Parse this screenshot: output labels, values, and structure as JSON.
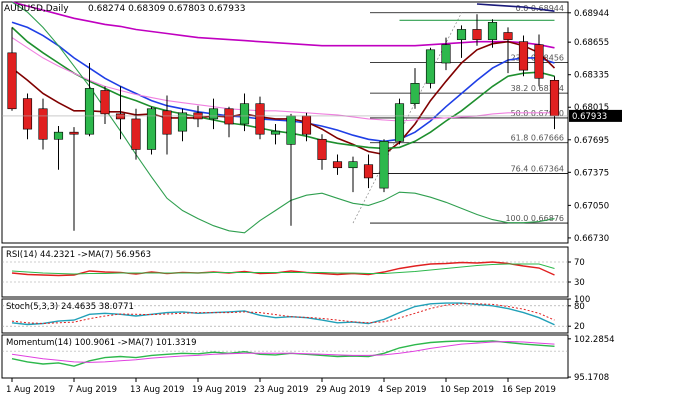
{
  "header": {
    "symbol": "AUDUSD,Daily",
    "ohlc": "0.68274 0.68309 0.67803 0.67933"
  },
  "colors": {
    "bull": "#2db84c",
    "bear": "#e02020",
    "wick": "#000000",
    "ema_magenta": "#c000c0",
    "ema_navy": "#1a1a7a",
    "ema_blue": "#1f3fe6",
    "ema_maroon": "#800000",
    "ema_green": "#1e8f2e",
    "ema_pink": "#f080e0",
    "bb_green": "#2f9f4f",
    "fib_line": "#000000",
    "price_label_bg": "#000000",
    "price_label_fg": "#ffffff",
    "rsi_line": "#e02020",
    "rsi_ma": "#2db84c",
    "stoch_main": "#21a0b8",
    "stoch_signal": "#e02020",
    "mom_line": "#2db84c",
    "mom_ma": "#e040e0"
  },
  "chart_data": [
    {
      "type": "candlestick",
      "title": "AUDUSD,Daily",
      "ylim": [
        0.6668,
        0.6905
      ],
      "y_ticks": [
        0.68944,
        0.68655,
        0.68335,
        0.68015,
        0.67695,
        0.67375,
        0.6705,
        0.6673
      ],
      "y_tick_labels": [
        "0.68944",
        "0.68655",
        "0.68335",
        "0.68015",
        "0.67695",
        "0.67375",
        "0.67050",
        "0.66730"
      ],
      "x_labels": [
        "1 Aug 2019",
        "7 Aug 2019",
        "13 Aug 2019",
        "19 Aug 2019",
        "23 Aug 2019",
        "29 Aug 2019",
        "4 Sep 2019",
        "10 Sep 2019",
        "16 Sep 2019"
      ],
      "x_label_indices": [
        0,
        4,
        8,
        12,
        16,
        20,
        24,
        28,
        32
      ],
      "last_price_label": "0.67933",
      "candles": [
        {
          "o": 0.6855,
          "h": 0.688,
          "l": 0.6798,
          "c": 0.68
        },
        {
          "o": 0.681,
          "h": 0.6815,
          "l": 0.677,
          "c": 0.678
        },
        {
          "o": 0.68,
          "h": 0.681,
          "l": 0.676,
          "c": 0.677
        },
        {
          "o": 0.677,
          "h": 0.6783,
          "l": 0.674,
          "c": 0.6777
        },
        {
          "o": 0.6777,
          "h": 0.6782,
          "l": 0.668,
          "c": 0.6775
        },
        {
          "o": 0.6775,
          "h": 0.6845,
          "l": 0.6773,
          "c": 0.682
        },
        {
          "o": 0.6818,
          "h": 0.6822,
          "l": 0.6785,
          "c": 0.6795
        },
        {
          "o": 0.6795,
          "h": 0.6822,
          "l": 0.677,
          "c": 0.679
        },
        {
          "o": 0.679,
          "h": 0.68,
          "l": 0.675,
          "c": 0.676
        },
        {
          "o": 0.676,
          "h": 0.6802,
          "l": 0.6755,
          "c": 0.68
        },
        {
          "o": 0.6798,
          "h": 0.6813,
          "l": 0.6755,
          "c": 0.6775
        },
        {
          "o": 0.6778,
          "h": 0.68,
          "l": 0.6768,
          "c": 0.6796
        },
        {
          "o": 0.6796,
          "h": 0.6803,
          "l": 0.6782,
          "c": 0.679
        },
        {
          "o": 0.679,
          "h": 0.681,
          "l": 0.678,
          "c": 0.68
        },
        {
          "o": 0.68,
          "h": 0.6802,
          "l": 0.6772,
          "c": 0.6785
        },
        {
          "o": 0.6785,
          "h": 0.6815,
          "l": 0.6778,
          "c": 0.6805
        },
        {
          "o": 0.6805,
          "h": 0.6812,
          "l": 0.677,
          "c": 0.6775
        },
        {
          "o": 0.6775,
          "h": 0.6785,
          "l": 0.6765,
          "c": 0.6778
        },
        {
          "o": 0.6765,
          "h": 0.6795,
          "l": 0.6685,
          "c": 0.6793
        },
        {
          "o": 0.6793,
          "h": 0.6796,
          "l": 0.6768,
          "c": 0.6775
        },
        {
          "o": 0.677,
          "h": 0.6775,
          "l": 0.674,
          "c": 0.675
        },
        {
          "o": 0.6748,
          "h": 0.6755,
          "l": 0.6735,
          "c": 0.6742
        },
        {
          "o": 0.6742,
          "h": 0.6753,
          "l": 0.6718,
          "c": 0.6748
        },
        {
          "o": 0.6745,
          "h": 0.6755,
          "l": 0.6722,
          "c": 0.6732
        },
        {
          "o": 0.6722,
          "h": 0.677,
          "l": 0.6718,
          "c": 0.6768
        },
        {
          "o": 0.6768,
          "h": 0.681,
          "l": 0.6765,
          "c": 0.6805
        },
        {
          "o": 0.6805,
          "h": 0.684,
          "l": 0.68,
          "c": 0.6825
        },
        {
          "o": 0.6825,
          "h": 0.686,
          "l": 0.682,
          "c": 0.6858
        },
        {
          "o": 0.6845,
          "h": 0.687,
          "l": 0.6838,
          "c": 0.6863
        },
        {
          "o": 0.6868,
          "h": 0.6882,
          "l": 0.685,
          "c": 0.6878
        },
        {
          "o": 0.6878,
          "h": 0.6893,
          "l": 0.6862,
          "c": 0.6868
        },
        {
          "o": 0.6868,
          "h": 0.6888,
          "l": 0.686,
          "c": 0.6885
        },
        {
          "o": 0.6875,
          "h": 0.688,
          "l": 0.6835,
          "c": 0.6868
        },
        {
          "o": 0.6866,
          "h": 0.6872,
          "l": 0.6832,
          "c": 0.6838
        },
        {
          "o": 0.6863,
          "h": 0.6873,
          "l": 0.6822,
          "c": 0.683
        },
        {
          "o": 0.6828,
          "h": 0.6832,
          "l": 0.678,
          "c": 0.6793
        }
      ],
      "moving_averages": [
        {
          "style": "ema_magenta",
          "values": [
            0.6905,
            0.6901,
            0.6897,
            0.6893,
            0.6889,
            0.6886,
            0.6883,
            0.6881,
            0.6878,
            0.6876,
            0.6874,
            0.6872,
            0.687,
            0.6869,
            0.6868,
            0.6867,
            0.6866,
            0.6865,
            0.6864,
            0.6863,
            0.6862,
            0.6862,
            0.6862,
            0.6862,
            0.6862,
            0.6862,
            0.6862,
            0.6863,
            0.6864,
            0.6865,
            0.6866,
            0.6866,
            0.6866,
            0.6865,
            0.6863,
            0.686
          ]
        },
        {
          "style": "ema_navy",
          "values": [
            null,
            null,
            null,
            null,
            null,
            null,
            null,
            null,
            null,
            null,
            null,
            null,
            null,
            null,
            null,
            null,
            null,
            null,
            null,
            null,
            null,
            null,
            null,
            null,
            null,
            null,
            null,
            null,
            null,
            null,
            0.6903,
            0.6902,
            0.6901,
            0.69,
            0.6898,
            0.6896
          ]
        },
        {
          "style": "ema_blue",
          "values": [
            0.6885,
            0.688,
            0.6872,
            0.6862,
            0.685,
            0.684,
            0.683,
            0.6822,
            0.6815,
            0.6808,
            0.6803,
            0.68,
            0.6797,
            0.6795,
            0.6793,
            0.6792,
            0.679,
            0.6789,
            0.6788,
            0.6786,
            0.6783,
            0.6779,
            0.6774,
            0.677,
            0.6768,
            0.677,
            0.6777,
            0.6788,
            0.6802,
            0.6815,
            0.6828,
            0.684,
            0.6848,
            0.685,
            0.685,
            0.6845
          ]
        },
        {
          "style": "ema_maroon",
          "values": [
            0.684,
            0.6828,
            0.6815,
            0.6806,
            0.6798,
            0.6798,
            0.6797,
            0.6797,
            0.6794,
            0.6795,
            0.6791,
            0.6791,
            0.6791,
            0.6793,
            0.6792,
            0.6795,
            0.6792,
            0.679,
            0.679,
            0.6787,
            0.678,
            0.6771,
            0.6765,
            0.6758,
            0.6755,
            0.6767,
            0.6785,
            0.6808,
            0.6827,
            0.6845,
            0.6858,
            0.6864,
            0.6866,
            0.6862,
            0.6855,
            0.684
          ]
        },
        {
          "style": "ema_green",
          "values": [
            0.688,
            0.6866,
            0.6855,
            0.6845,
            0.6835,
            0.6827,
            0.682,
            0.6813,
            0.6808,
            0.6802,
            0.6798,
            0.6795,
            0.6792,
            0.6789,
            0.6786,
            0.6784,
            0.6781,
            0.6778,
            0.6776,
            0.6773,
            0.6769,
            0.6766,
            0.6764,
            0.6762,
            0.6761,
            0.6762,
            0.6768,
            0.6777,
            0.6788,
            0.6798,
            0.681,
            0.6822,
            0.6832,
            0.6835,
            0.6836,
            0.6832
          ]
        },
        {
          "style": "ema_pink",
          "values": [
            0.687,
            0.686,
            0.685,
            0.6842,
            0.6835,
            0.6828,
            0.6822,
            0.6818,
            0.6814,
            0.6811,
            0.6808,
            0.6806,
            0.6804,
            0.6802,
            0.68,
            0.6799,
            0.6798,
            0.6798,
            0.6797,
            0.6796,
            0.6795,
            0.6794,
            0.6792,
            0.679,
            0.6789,
            0.6788,
            0.6789,
            0.679,
            0.6791,
            0.6792,
            0.6793,
            0.6795,
            0.6796,
            0.6796,
            0.6796,
            0.6796
          ]
        },
        {
          "style": "bb_green",
          "values": [
            0.6905,
            0.6895,
            0.688,
            0.6862,
            0.6842,
            0.6822,
            0.68,
            0.6778,
            0.6755,
            0.6733,
            0.6712,
            0.67,
            0.6692,
            0.6685,
            0.668,
            0.6678,
            0.669,
            0.67,
            0.671,
            0.6715,
            0.6717,
            0.6712,
            0.6707,
            0.6705,
            0.671,
            0.6718,
            0.6717,
            0.6713,
            0.6708,
            0.6702,
            0.6696,
            0.6691,
            0.6688,
            0.6688,
            0.6689,
            0.6692
          ]
        },
        {
          "style": "bb_green",
          "values": [
            null,
            null,
            null,
            null,
            null,
            null,
            null,
            null,
            null,
            null,
            null,
            null,
            null,
            null,
            null,
            null,
            null,
            null,
            null,
            null,
            null,
            null,
            null,
            null,
            null,
            0.6887,
            0.6887,
            0.6887,
            0.6887,
            0.6887,
            0.6887,
            0.6887,
            0.6887,
            0.6887,
            0.6887,
            0.6887
          ]
        }
      ],
      "fib_levels": [
        {
          "label": "0.0",
          "value": 0.68944
        },
        {
          "label": "23.6",
          "value": 0.68456
        },
        {
          "label": "38.2",
          "value": 0.68154
        },
        {
          "label": "50.0",
          "value": 0.6791
        },
        {
          "label": "61.8",
          "value": 0.67666
        },
        {
          "label": "76.4",
          "value": 0.67364
        },
        {
          "label": "100.0",
          "value": 0.66876
        }
      ]
    },
    {
      "type": "line",
      "title": "RSI(14) 44.2321 ->MA(7) 56.9563",
      "ylim": [
        0,
        100
      ],
      "y_ticks": [
        70,
        30
      ],
      "y_tick_labels": [
        "70",
        "30"
      ],
      "levels": [
        70,
        30
      ],
      "series": [
        {
          "values": [
            48,
            45,
            44,
            43,
            44,
            52,
            50,
            49,
            46,
            50,
            47,
            49,
            48,
            50,
            48,
            51,
            47,
            48,
            52,
            49,
            47,
            45,
            47,
            45,
            50,
            57,
            62,
            66,
            67,
            69,
            68,
            70,
            67,
            62,
            58,
            44
          ]
        },
        {
          "values": [
            52,
            50,
            48,
            47,
            46,
            47,
            47,
            48,
            48,
            48,
            48,
            48,
            48,
            49,
            49,
            49,
            49,
            49,
            49,
            49,
            49,
            48,
            48,
            47,
            47,
            49,
            51,
            54,
            57,
            60,
            63,
            65,
            66,
            66,
            66,
            57
          ]
        }
      ]
    },
    {
      "type": "line",
      "title": "Stoch(5,3,3) 24.4635 38.0771",
      "ylim": [
        0,
        100
      ],
      "y_ticks": [
        100,
        80,
        20
      ],
      "y_tick_labels": [
        "100",
        "80",
        "20"
      ],
      "levels": [
        80,
        20
      ],
      "series": [
        {
          "values": [
            30,
            25,
            28,
            35,
            38,
            55,
            58,
            55,
            50,
            55,
            60,
            62,
            58,
            60,
            62,
            65,
            52,
            45,
            48,
            45,
            38,
            30,
            32,
            28,
            40,
            60,
            78,
            86,
            88,
            88,
            84,
            80,
            72,
            60,
            45,
            24
          ]
        },
        {
          "values": [
            35,
            30,
            28,
            30,
            32,
            42,
            50,
            56,
            55,
            54,
            56,
            58,
            60,
            60,
            60,
            62,
            60,
            54,
            48,
            46,
            43,
            38,
            33,
            30,
            33,
            44,
            58,
            72,
            82,
            86,
            86,
            84,
            78,
            70,
            58,
            38
          ]
        }
      ]
    },
    {
      "type": "line",
      "title": "Momentum(14) 100.9061 ->MA(7) 101.3319",
      "ylim": [
        95.0,
        103.0
      ],
      "y_ticks": [
        102.2854,
        95.1708
      ],
      "y_tick_labels": [
        "102.2854",
        "95.1708"
      ],
      "levels": [
        100
      ],
      "series": [
        {
          "values": [
            98.6,
            98.0,
            97.6,
            97.8,
            97.2,
            98.2,
            98.8,
            99.0,
            98.8,
            99.2,
            99.4,
            99.6,
            99.5,
            99.8,
            99.6,
            99.9,
            99.4,
            99.3,
            99.6,
            99.4,
            99.2,
            99.0,
            99.1,
            99.0,
            99.6,
            100.6,
            101.2,
            101.6,
            101.8,
            101.9,
            101.8,
            101.9,
            101.6,
            101.3,
            101.1,
            100.9
          ]
        },
        {
          "values": [
            99.4,
            99.0,
            98.6,
            98.3,
            98.0,
            97.9,
            98.0,
            98.2,
            98.4,
            98.7,
            98.9,
            99.1,
            99.2,
            99.4,
            99.5,
            99.6,
            99.6,
            99.6,
            99.6,
            99.5,
            99.4,
            99.3,
            99.2,
            99.2,
            99.3,
            99.6,
            100.0,
            100.5,
            100.9,
            101.3,
            101.5,
            101.7,
            101.8,
            101.7,
            101.5,
            101.3
          ]
        }
      ]
    }
  ]
}
